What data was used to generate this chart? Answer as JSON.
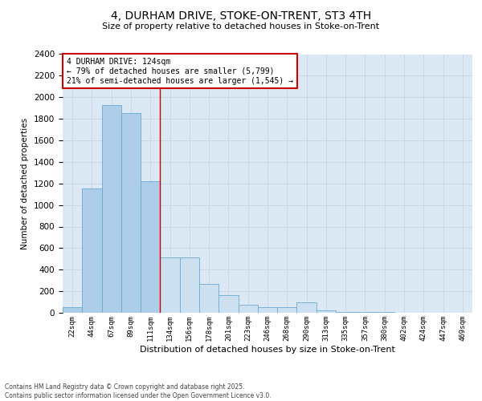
{
  "title1": "4, DURHAM DRIVE, STOKE-ON-TRENT, ST3 4TH",
  "title2": "Size of property relative to detached houses in Stoke-on-Trent",
  "xlabel": "Distribution of detached houses by size in Stoke-on-Trent",
  "ylabel": "Number of detached properties",
  "categories": [
    "22sqm",
    "44sqm",
    "67sqm",
    "89sqm",
    "111sqm",
    "134sqm",
    "156sqm",
    "178sqm",
    "201sqm",
    "223sqm",
    "246sqm",
    "268sqm",
    "290sqm",
    "313sqm",
    "335sqm",
    "357sqm",
    "380sqm",
    "402sqm",
    "424sqm",
    "447sqm",
    "469sqm"
  ],
  "values": [
    55,
    1150,
    1930,
    1850,
    1220,
    510,
    510,
    270,
    165,
    75,
    55,
    50,
    100,
    20,
    10,
    5,
    5,
    2,
    2,
    1,
    1
  ],
  "bar_color_left": "#aecde8",
  "bar_color_right": "#cde0f0",
  "bar_edge_color": "#6aaad4",
  "highlight_line_color": "#cc0000",
  "highlight_index": 5,
  "annotation_text": "4 DURHAM DRIVE: 124sqm\n← 79% of detached houses are smaller (5,799)\n21% of semi-detached houses are larger (1,545) →",
  "annotation_box_color": "#ffffff",
  "annotation_border_color": "#cc0000",
  "grid_color": "#c8d8e8",
  "background_color": "#dce8f4",
  "ylim": [
    0,
    2400
  ],
  "yticks": [
    0,
    200,
    400,
    600,
    800,
    1000,
    1200,
    1400,
    1600,
    1800,
    2000,
    2200,
    2400
  ],
  "footer1": "Contains HM Land Registry data © Crown copyright and database right 2025.",
  "footer2": "Contains public sector information licensed under the Open Government Licence v3.0."
}
